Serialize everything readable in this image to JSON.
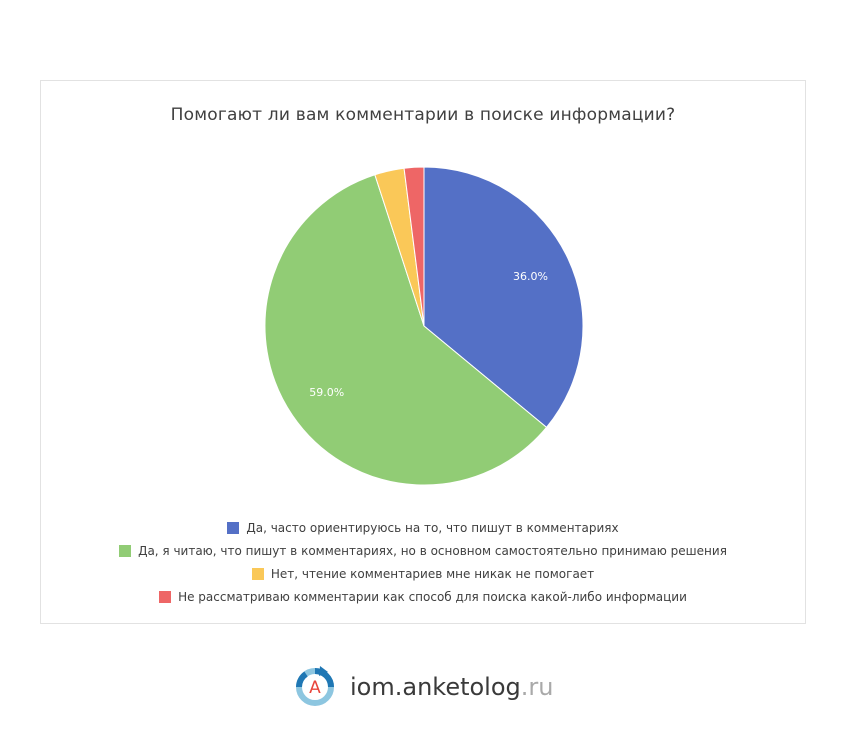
{
  "chart_data": {
    "type": "pie",
    "title": "Помогают ли вам комментарии в поиске информации?",
    "slices": [
      {
        "label": "Да, часто ориентируюсь на то, что пишут в комментариях",
        "value": 36.0,
        "color": "#5470c6",
        "data_label": "36.0%"
      },
      {
        "label": "Да, я читаю, что пишут в комментариях, но в основном самостоятельно принимаю решения",
        "value": 59.0,
        "color": "#91cc75",
        "data_label": "59.0%"
      },
      {
        "label": "Нет, чтение комментариев мне никак не помогает",
        "value": 3.0,
        "color": "#fac858",
        "data_label": ""
      },
      {
        "label": "Не рассматриваю комментарии как способ для поиска какой-либо информации",
        "value": 2.0,
        "color": "#ee6666",
        "data_label": ""
      }
    ],
    "legend_position": "bottom",
    "start_angle": "12 o'clock, clockwise"
  },
  "brand": {
    "name": "iom.anketolog",
    "tld": ".ru",
    "logo_letter": "A",
    "logo_icon": "anketolog-logo-icon",
    "colors": {
      "dark": "#1f77b4",
      "light": "#8dc6e0",
      "letter": "#e8453c"
    }
  }
}
